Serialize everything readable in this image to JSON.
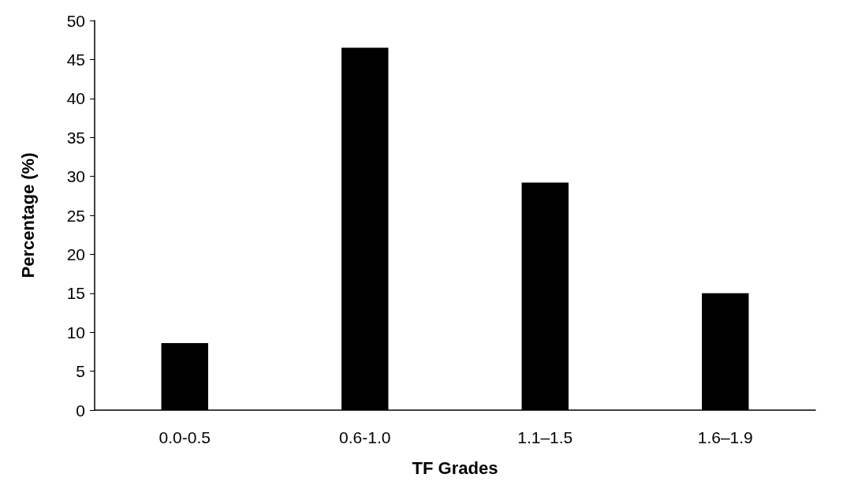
{
  "chart_data": {
    "type": "bar",
    "xlabel": "TF Grades",
    "ylabel": "Percentage (%)",
    "categories": [
      "0.0-0.5",
      "0.6-1.0",
      "1.1–1.5",
      "1.6–1.9"
    ],
    "values": [
      8.6,
      46.5,
      29.2,
      15.0
    ],
    "color": "#000000",
    "ylim": [
      0,
      50
    ],
    "yticks": [
      0,
      5,
      10,
      15,
      20,
      25,
      30,
      35,
      40,
      45,
      50
    ],
    "grid": false
  }
}
